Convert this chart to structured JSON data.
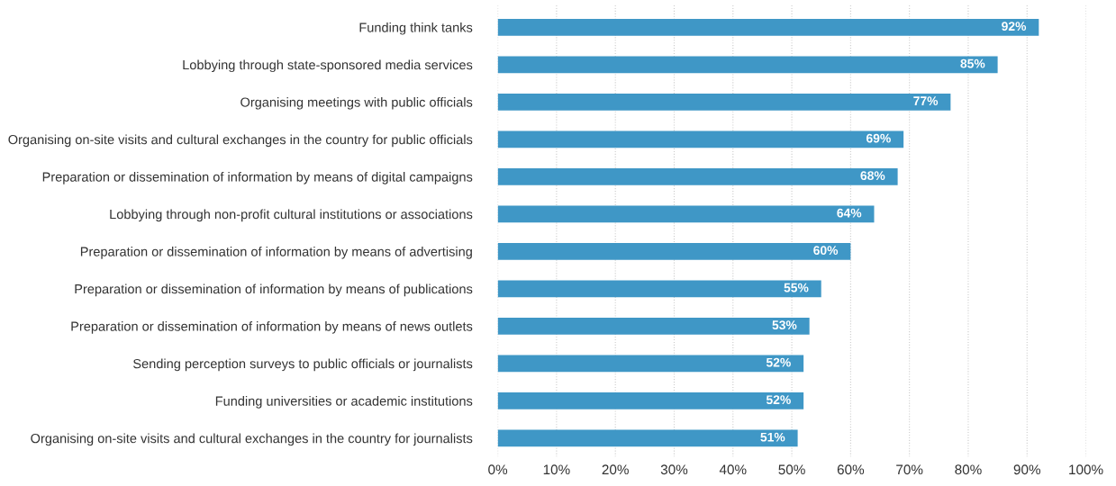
{
  "chart_data": {
    "type": "bar",
    "orientation": "horizontal",
    "categories": [
      "Funding think tanks",
      "Lobbying through state-sponsored media services",
      "Organising meetings with public officials",
      "Organising on-site visits and cultural exchanges in the country for public officials",
      "Preparation or dissemination of information by means of digital campaigns",
      "Lobbying through non-profit cultural institutions or associations",
      "Preparation or dissemination of information by means of advertising",
      "Preparation or dissemination of information by means of publications",
      "Preparation or dissemination of information by means of news outlets",
      "Sending perception surveys to public officials or journalists",
      "Funding universities or academic institutions",
      "Organising on-site visits and cultural exchanges in the country for journalists"
    ],
    "values": [
      92,
      85,
      77,
      69,
      68,
      64,
      60,
      55,
      53,
      52,
      52,
      51
    ],
    "value_labels": [
      "92%",
      "85%",
      "77%",
      "69%",
      "68%",
      "64%",
      "60%",
      "55%",
      "53%",
      "52%",
      "52%",
      "51%"
    ],
    "color": "#3f97c6",
    "xlim": [
      0,
      100
    ],
    "xticks": [
      {
        "value": 0,
        "label": "0%"
      },
      {
        "value": 10,
        "label": "10%"
      },
      {
        "value": 20,
        "label": "20%"
      },
      {
        "value": 30,
        "label": "30%"
      },
      {
        "value": 40,
        "label": "40%"
      },
      {
        "value": 50,
        "label": "50%"
      },
      {
        "value": 60,
        "label": "60%"
      },
      {
        "value": 70,
        "label": "70%"
      },
      {
        "value": 80,
        "label": "80%"
      },
      {
        "value": 90,
        "label": "90%"
      },
      {
        "value": 100,
        "label": "100%"
      }
    ],
    "grid": "x"
  }
}
